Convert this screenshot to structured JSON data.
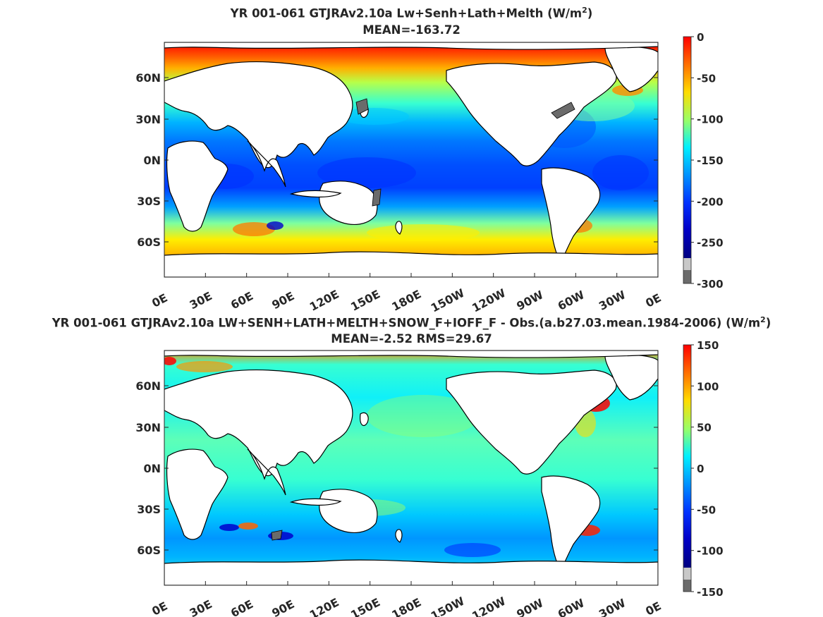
{
  "panels": [
    {
      "title_prefix": "YR 001-061 GTJRAv2.10a Lw+Senh+Lath+Melth (W/m",
      "title_sup": "2",
      "title_suffix": ")",
      "stats": "MEAN=-163.72",
      "colorbar_ticks": [
        "0",
        "-50",
        "-100",
        "-150",
        "-200",
        "-250",
        "-300"
      ]
    },
    {
      "title_prefix": "YR 001-061 GTJRAv2.10a LW+SENH+LATH+MELTH+SNOW_F+IOFF_F - Obs.(a.b27.03.mean.1984-2006) (W/m",
      "title_sup": "2",
      "title_suffix": ")",
      "stats": "MEAN=-2.52 RMS=29.67",
      "colorbar_ticks": [
        "150",
        "100",
        "50",
        "0",
        "-50",
        "-100",
        "-150"
      ]
    }
  ],
  "axes": {
    "y_ticks": [
      "60N",
      "30N",
      "0N",
      "30S",
      "60S"
    ],
    "x_ticks": [
      "0E",
      "30E",
      "60E",
      "90E",
      "120E",
      "150E",
      "180E",
      "150W",
      "120W",
      "90W",
      "60W",
      "30W",
      "0E"
    ]
  },
  "colors": {
    "colormap": [
      "#ff0000",
      "#ff6a00",
      "#ffaa00",
      "#ffee00",
      "#c8ff37",
      "#7dffa0",
      "#37ffd2",
      "#00e6ff",
      "#00aaff",
      "#0066ff",
      "#0022ff",
      "#0000cc",
      "#000080"
    ],
    "land": "#ffffff",
    "ice_shelf": "#6b6b6b",
    "colorbar_gray_light": "#c8c8c8",
    "colorbar_gray_dark": "#6b6b6b"
  }
}
